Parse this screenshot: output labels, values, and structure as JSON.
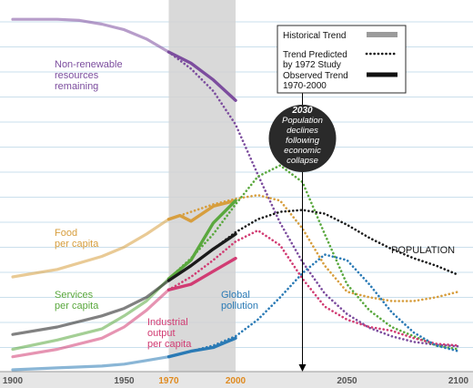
{
  "chart_data": {
    "type": "line",
    "x_ticks": [
      1900,
      1950,
      1970,
      2000,
      2050,
      2100
    ],
    "highlight_ticks": [
      1970,
      2000
    ],
    "shaded_period": [
      1970,
      2000
    ],
    "xlim": [
      1900,
      2100
    ],
    "grid": true,
    "legend_position": "top-right",
    "legend": [
      {
        "label": "Historical Trend",
        "style": "historical"
      },
      {
        "label": "Trend Predicted by 1972 Study",
        "style": "predicted"
      },
      {
        "label": "Observed Trend 1970-2000",
        "style": "observed"
      }
    ],
    "annotation": {
      "year": "2030",
      "lines": [
        "Population",
        "declines",
        "following",
        "economic",
        "collapse"
      ],
      "x": 2030
    },
    "series": [
      {
        "name": "Non-renewable resources remaining",
        "label_lines": [
          "Non-renewable",
          "resources",
          "remaining"
        ],
        "color": "#7c4d9e",
        "historical": [
          [
            1900,
            0.948
          ],
          [
            1920,
            0.948
          ],
          [
            1930,
            0.945
          ],
          [
            1940,
            0.935
          ],
          [
            1950,
            0.92
          ],
          [
            1960,
            0.895
          ],
          [
            1970,
            0.86
          ]
        ],
        "predicted": [
          [
            1970,
            0.86
          ],
          [
            1980,
            0.815
          ],
          [
            1990,
            0.755
          ],
          [
            2000,
            0.665
          ],
          [
            2010,
            0.53
          ],
          [
            2020,
            0.4
          ],
          [
            2030,
            0.295
          ],
          [
            2040,
            0.21
          ],
          [
            2050,
            0.155
          ],
          [
            2060,
            0.118
          ],
          [
            2070,
            0.095
          ],
          [
            2080,
            0.08
          ],
          [
            2090,
            0.072
          ],
          [
            2100,
            0.068
          ]
        ],
        "observed": [
          [
            1970,
            0.86
          ],
          [
            1980,
            0.83
          ],
          [
            1990,
            0.785
          ],
          [
            2000,
            0.73
          ]
        ]
      },
      {
        "name": "Food per capita",
        "label_lines": [
          "Food",
          "per capita"
        ],
        "color": "#d79e3e",
        "historical": [
          [
            1900,
            0.255
          ],
          [
            1920,
            0.275
          ],
          [
            1940,
            0.31
          ],
          [
            1950,
            0.335
          ],
          [
            1960,
            0.37
          ],
          [
            1970,
            0.41
          ]
        ],
        "predicted": [
          [
            1970,
            0.41
          ],
          [
            1980,
            0.43
          ],
          [
            1990,
            0.45
          ],
          [
            2000,
            0.465
          ],
          [
            2010,
            0.475
          ],
          [
            2020,
            0.46
          ],
          [
            2030,
            0.385
          ],
          [
            2040,
            0.285
          ],
          [
            2050,
            0.215
          ],
          [
            2060,
            0.2
          ],
          [
            2070,
            0.19
          ],
          [
            2080,
            0.19
          ],
          [
            2090,
            0.2
          ],
          [
            2100,
            0.215
          ]
        ],
        "observed": [
          [
            1970,
            0.41
          ],
          [
            1975,
            0.42
          ],
          [
            1980,
            0.405
          ],
          [
            1990,
            0.445
          ],
          [
            2000,
            0.46
          ]
        ]
      },
      {
        "name": "Services per capita",
        "label_lines": [
          "Services",
          "per capita"
        ],
        "color": "#5aa83e",
        "historical": [
          [
            1900,
            0.06
          ],
          [
            1920,
            0.085
          ],
          [
            1940,
            0.115
          ],
          [
            1950,
            0.15
          ],
          [
            1960,
            0.19
          ],
          [
            1970,
            0.25
          ]
        ],
        "predicted": [
          [
            1970,
            0.25
          ],
          [
            1980,
            0.305
          ],
          [
            1990,
            0.37
          ],
          [
            2000,
            0.45
          ],
          [
            2010,
            0.525
          ],
          [
            2020,
            0.555
          ],
          [
            2030,
            0.51
          ],
          [
            2040,
            0.37
          ],
          [
            2050,
            0.235
          ],
          [
            2060,
            0.165
          ],
          [
            2070,
            0.12
          ],
          [
            2080,
            0.095
          ],
          [
            2090,
            0.07
          ],
          [
            2100,
            0.06
          ]
        ],
        "observed": [
          [
            1970,
            0.25
          ],
          [
            1980,
            0.3
          ],
          [
            1990,
            0.4
          ],
          [
            2000,
            0.46
          ]
        ]
      },
      {
        "name": "POPULATION",
        "label_lines": [
          "POPULATION"
        ],
        "color": "#1a1a1a",
        "historical": [
          [
            1900,
            0.1
          ],
          [
            1920,
            0.12
          ],
          [
            1940,
            0.15
          ],
          [
            1950,
            0.17
          ],
          [
            1960,
            0.2
          ],
          [
            1970,
            0.245
          ]
        ],
        "predicted": [
          [
            1970,
            0.245
          ],
          [
            1980,
            0.285
          ],
          [
            1990,
            0.33
          ],
          [
            2000,
            0.375
          ],
          [
            2010,
            0.41
          ],
          [
            2020,
            0.43
          ],
          [
            2030,
            0.435
          ],
          [
            2040,
            0.425
          ],
          [
            2050,
            0.395
          ],
          [
            2060,
            0.36
          ],
          [
            2070,
            0.33
          ],
          [
            2080,
            0.305
          ],
          [
            2090,
            0.285
          ],
          [
            2100,
            0.26
          ]
        ],
        "observed": [
          [
            1970,
            0.245
          ],
          [
            1980,
            0.285
          ],
          [
            1990,
            0.33
          ],
          [
            2000,
            0.37
          ]
        ]
      },
      {
        "name": "Industrial output per capita",
        "label_lines": [
          "Industrial",
          "output",
          "per capita"
        ],
        "color": "#d13c73",
        "historical": [
          [
            1900,
            0.04
          ],
          [
            1920,
            0.06
          ],
          [
            1940,
            0.09
          ],
          [
            1950,
            0.12
          ],
          [
            1960,
            0.165
          ],
          [
            1970,
            0.22
          ]
        ],
        "predicted": [
          [
            1970,
            0.22
          ],
          [
            1980,
            0.255
          ],
          [
            1990,
            0.3
          ],
          [
            2000,
            0.35
          ],
          [
            2010,
            0.38
          ],
          [
            2020,
            0.34
          ],
          [
            2030,
            0.25
          ],
          [
            2040,
            0.175
          ],
          [
            2050,
            0.14
          ],
          [
            2060,
            0.12
          ],
          [
            2070,
            0.11
          ],
          [
            2080,
            0.09
          ],
          [
            2090,
            0.075
          ],
          [
            2100,
            0.07
          ]
        ],
        "observed": [
          [
            1970,
            0.22
          ],
          [
            1980,
            0.235
          ],
          [
            1990,
            0.27
          ],
          [
            2000,
            0.305
          ]
        ]
      },
      {
        "name": "Global pollution",
        "label_lines": [
          "Global",
          "pollution"
        ],
        "color": "#2a7ab5",
        "historical": [
          [
            1900,
            0.005
          ],
          [
            1920,
            0.01
          ],
          [
            1940,
            0.015
          ],
          [
            1950,
            0.02
          ],
          [
            1960,
            0.03
          ],
          [
            1970,
            0.04
          ]
        ],
        "predicted": [
          [
            1970,
            0.04
          ],
          [
            1980,
            0.055
          ],
          [
            1990,
            0.07
          ],
          [
            2000,
            0.095
          ],
          [
            2010,
            0.14
          ],
          [
            2020,
            0.2
          ],
          [
            2030,
            0.265
          ],
          [
            2040,
            0.315
          ],
          [
            2050,
            0.3
          ],
          [
            2060,
            0.235
          ],
          [
            2070,
            0.16
          ],
          [
            2080,
            0.105
          ],
          [
            2090,
            0.07
          ],
          [
            2100,
            0.055
          ]
        ],
        "observed": [
          [
            1970,
            0.04
          ],
          [
            1980,
            0.055
          ],
          [
            1990,
            0.065
          ],
          [
            2000,
            0.09
          ]
        ]
      }
    ]
  }
}
